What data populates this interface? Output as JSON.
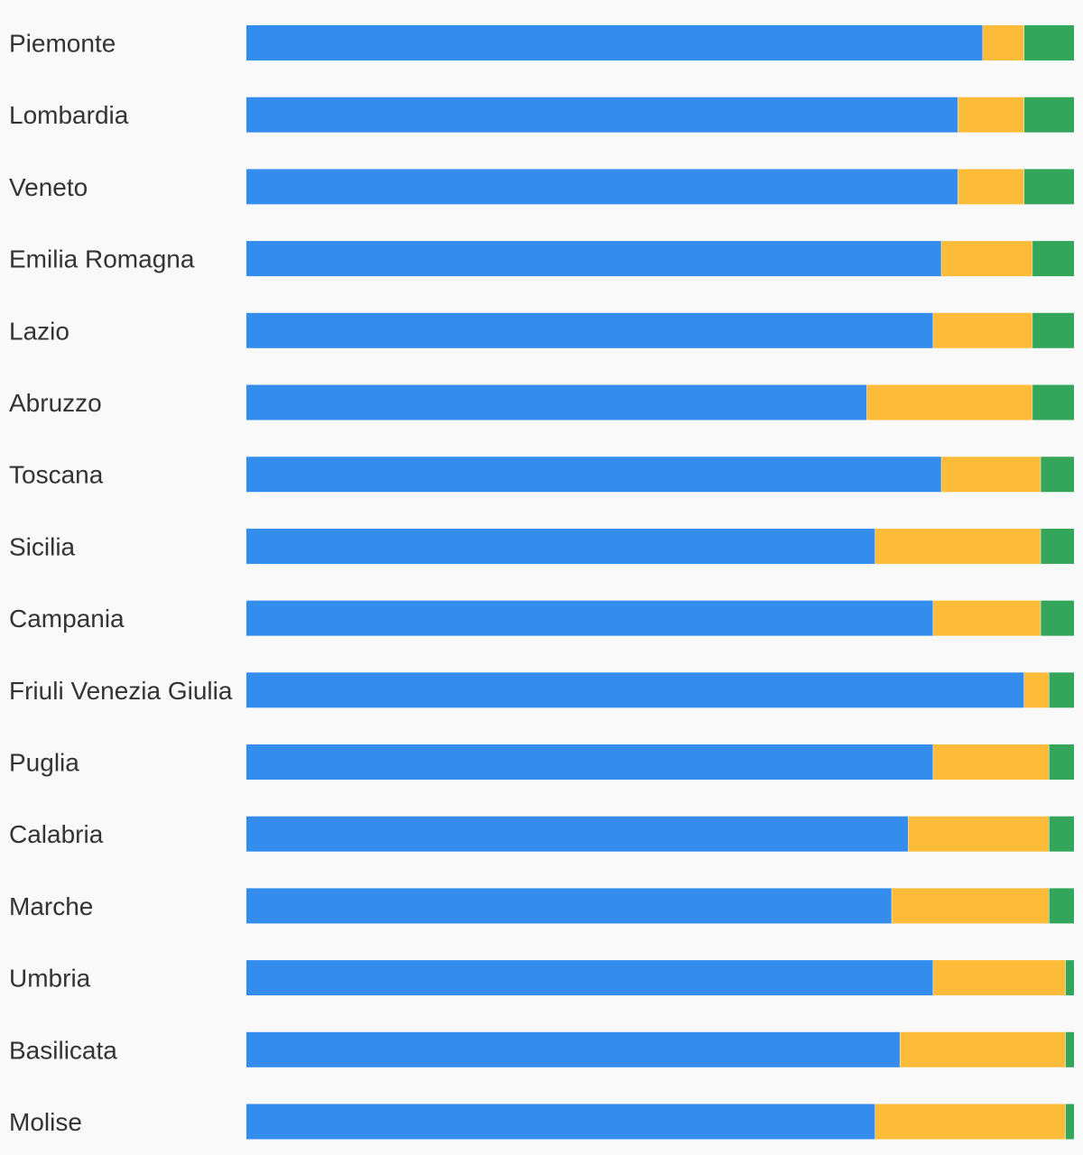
{
  "chart_data": {
    "type": "bar",
    "orientation": "horizontal",
    "stacked": true,
    "normalized": true,
    "title": "",
    "xlabel": "",
    "ylabel": "",
    "xlim": [
      0,
      100
    ],
    "grid": false,
    "legend": "none",
    "categories": [
      "Piemonte",
      "Lombardia",
      "Veneto",
      "Emilia Romagna",
      "Lazio",
      "Abruzzo",
      "Toscana",
      "Sicilia",
      "Campania",
      "Friuli Venezia Giulia",
      "Puglia",
      "Calabria",
      "Marche",
      "Umbria",
      "Basilicata",
      "Molise"
    ],
    "series": [
      {
        "color": "#348ced",
        "values": [
          89,
          86,
          86,
          84,
          83,
          75,
          84,
          76,
          83,
          94,
          83,
          80,
          78,
          83,
          79,
          76
        ]
      },
      {
        "color": "#fdbb3a",
        "values": [
          5,
          8,
          8,
          11,
          12,
          20,
          12,
          20,
          13,
          3,
          14,
          17,
          19,
          16,
          20,
          23
        ]
      },
      {
        "color": "#33a65b",
        "values": [
          6,
          6,
          6,
          5,
          5,
          5,
          4,
          4,
          4,
          3,
          3,
          3,
          3,
          1,
          1,
          1
        ]
      }
    ]
  }
}
